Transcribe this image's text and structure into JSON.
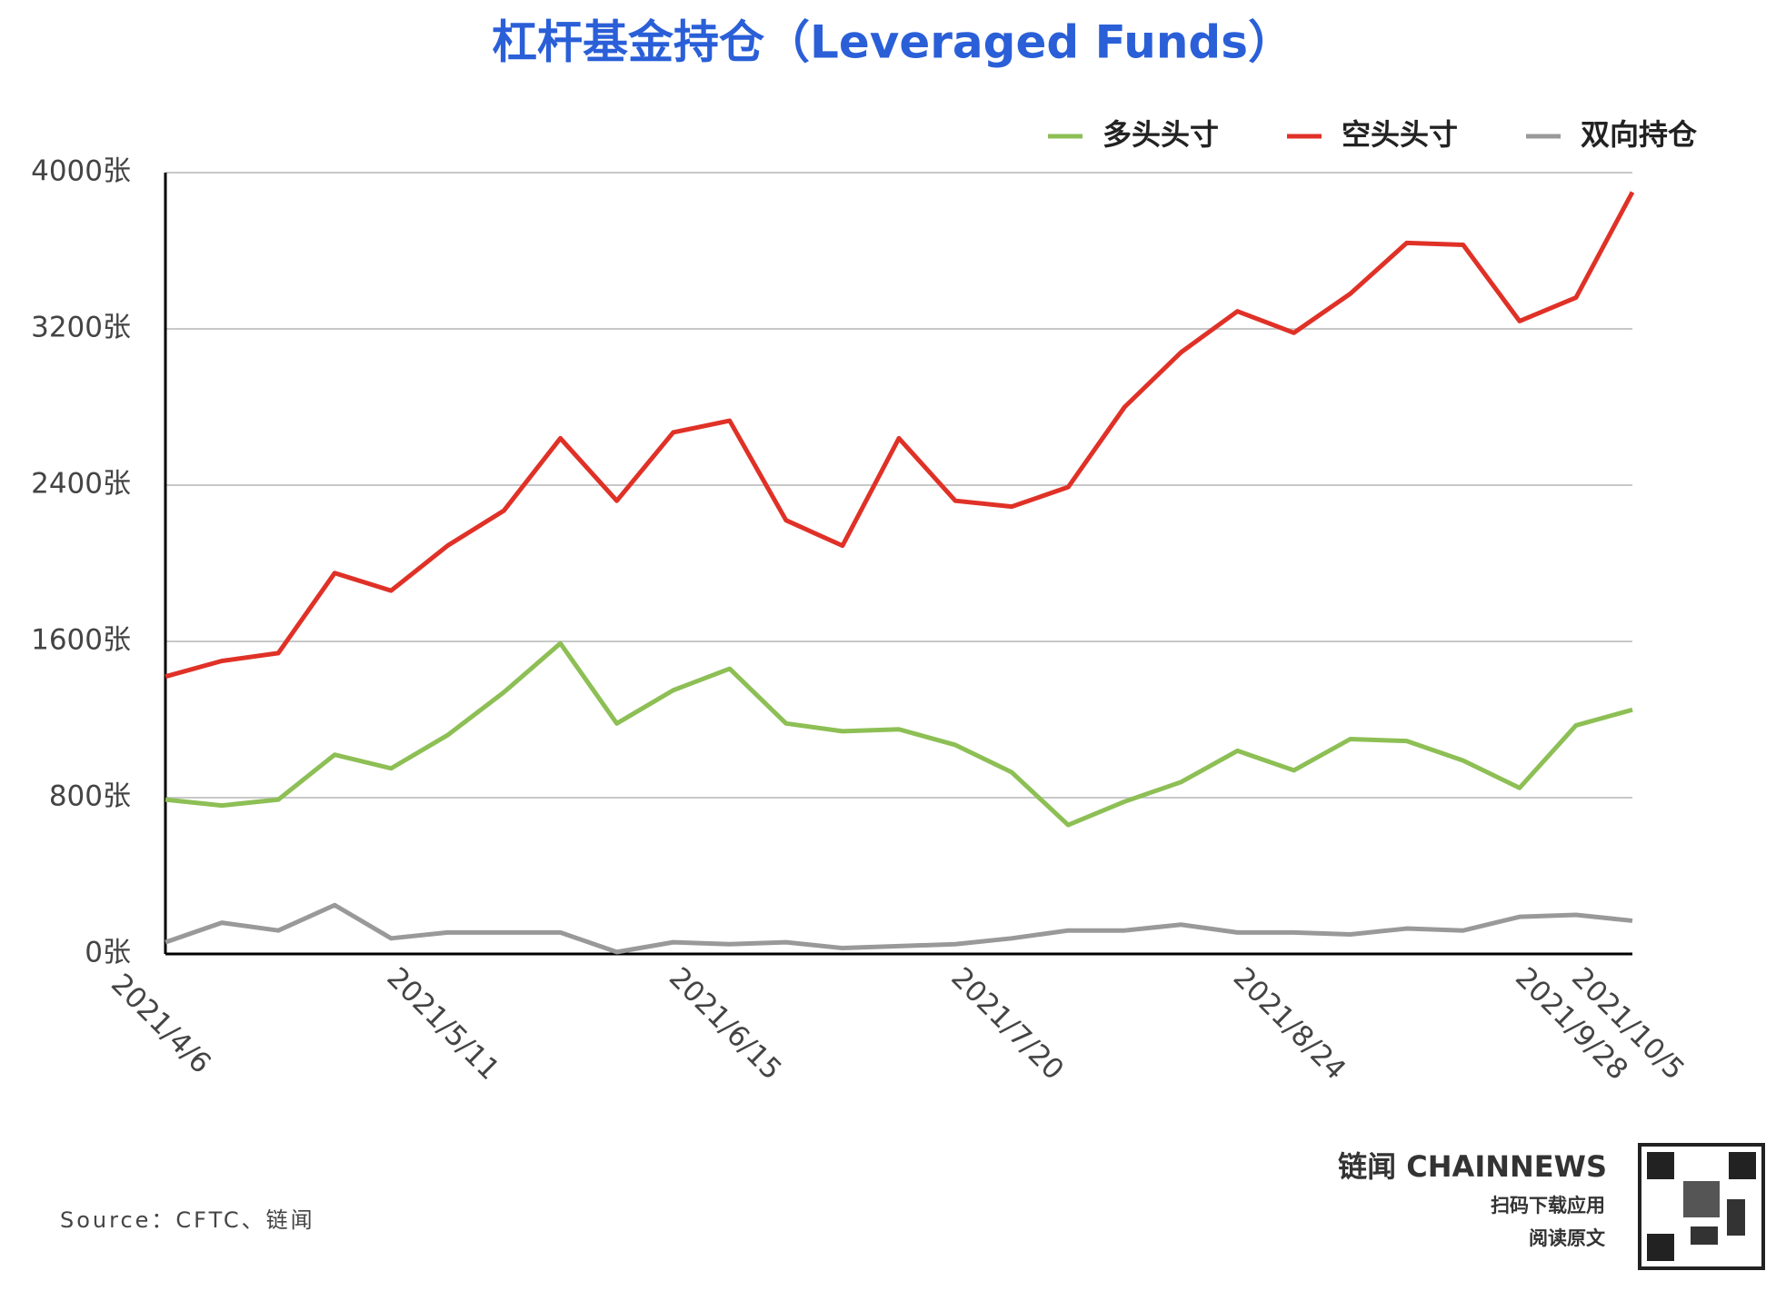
{
  "chart_data": {
    "type": "line",
    "title": "杠杆基金持仓（Leveraged Funds）",
    "categories": [
      "2021/4/6",
      null,
      null,
      null,
      null,
      "2021/5/11",
      null,
      null,
      null,
      null,
      "2021/6/15",
      null,
      null,
      null,
      null,
      "2021/7/20",
      null,
      null,
      null,
      null,
      "2021/8/24",
      null,
      null,
      null,
      null,
      "2021/9/28",
      "2021/10/5"
    ],
    "series": [
      {
        "name": "多头头寸",
        "color": "#8dbf55",
        "values": [
          790,
          760,
          790,
          1020,
          950,
          1120,
          1340,
          1590,
          1180,
          1350,
          1460,
          1180,
          1140,
          1150,
          1070,
          930,
          660,
          780,
          880,
          1040,
          940,
          1100,
          1090,
          990,
          850,
          1170,
          1250
        ]
      },
      {
        "name": "空头头寸",
        "color": "#e03127",
        "values": [
          1420,
          1500,
          1540,
          1950,
          1860,
          2090,
          2270,
          2640,
          2320,
          2670,
          2730,
          2220,
          2090,
          2640,
          2320,
          2290,
          2390,
          2800,
          3080,
          3290,
          3180,
          3380,
          3640,
          3630,
          3240,
          3360,
          3900
        ]
      },
      {
        "name": "双向持仓",
        "color": "#999999",
        "values": [
          60,
          160,
          120,
          250,
          80,
          110,
          110,
          110,
          10,
          60,
          50,
          60,
          30,
          40,
          50,
          80,
          120,
          120,
          150,
          110,
          110,
          100,
          130,
          120,
          190,
          200,
          170
        ]
      }
    ],
    "ylim": [
      0,
      4000
    ],
    "yticks": [
      {
        "value": 0,
        "label": "0张"
      },
      {
        "value": 800,
        "label": "800张"
      },
      {
        "value": 1600,
        "label": "1600张"
      },
      {
        "value": 2400,
        "label": "2400张"
      },
      {
        "value": 3200,
        "label": "3200张"
      },
      {
        "value": 4000,
        "label": "4000张"
      }
    ],
    "grid": true,
    "legend": "top-right"
  },
  "source": "Source：CFTC、链闻",
  "brand": {
    "name": "链闻 CHAINNEWS",
    "line1": "扫码下载应用",
    "line2": "阅读原文"
  }
}
